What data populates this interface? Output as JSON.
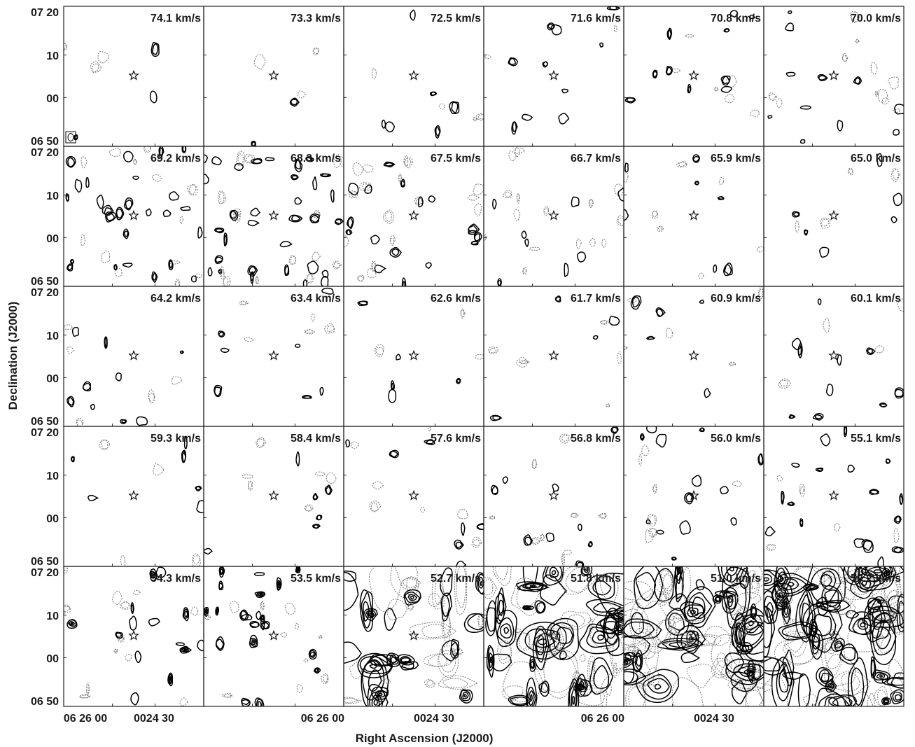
{
  "chart_data": {
    "type": "contour-channel-map",
    "grid": {
      "rows": 5,
      "cols": 6
    },
    "xlabel": "Right Ascension (J2000)",
    "ylabel": "Declination (J2000)",
    "x_tick_labels": [
      "06 26 00",
      "0024 30",
      "06 26 00",
      "0024 30",
      "06 26 00",
      "0024 30"
    ],
    "y_tick_labels": [
      "07 20",
      "10",
      "00",
      "06 50"
    ],
    "channels": [
      "74.1 km/s",
      "73.3 km/s",
      "72.5 km/s",
      "71.6 km/s",
      "70.8 km/s",
      "70.0 km/s",
      "69.2 km/s",
      "68.3 km/s",
      "67.5 km/s",
      "66.7 km/s",
      "65.9 km/s",
      "65.0 km/s",
      "64.2 km/s",
      "63.4 km/s",
      "62.6 km/s",
      "61.7 km/s",
      "60.9 km/s",
      "60.1 km/s",
      "59.3 km/s",
      "58.4 km/s",
      "57.6 km/s",
      "56.8 km/s",
      "56.0 km/s",
      "55.1 km/s",
      "54.3 km/s",
      "53.5 km/s",
      "52.7 km/s",
      "51.8 km/s",
      "51.0 km/s",
      "50.2 km/s"
    ],
    "source_marker": "star",
    "contour_styles": {
      "positive": "solid black",
      "negative": "dotted gray"
    },
    "colors": {
      "positive": "#000000",
      "negative": "#777777",
      "frame": "#222222"
    }
  }
}
